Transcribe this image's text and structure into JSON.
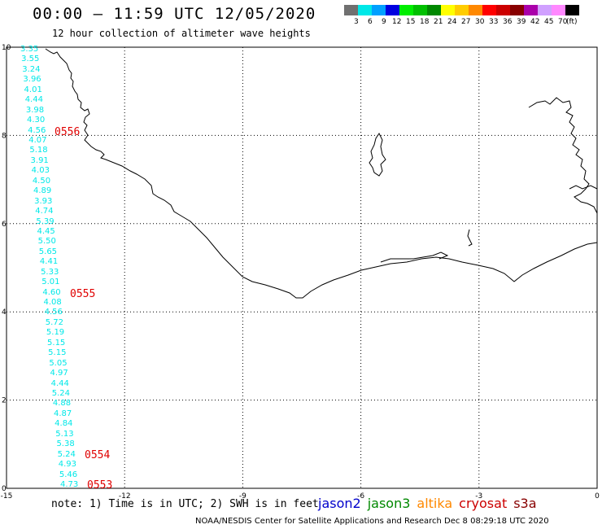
{
  "header": {
    "title": "00:00 – 11:59 UTC 12/05/2020",
    "subtitle": "12 hour collection of altimeter wave heights"
  },
  "legend": {
    "unit": "(ft)",
    "swatches": [
      {
        "label": "3",
        "color": "#707070"
      },
      {
        "label": "6",
        "color": "#00e8e8"
      },
      {
        "label": "9",
        "color": "#00a0ff"
      },
      {
        "label": "12",
        "color": "#0000e0"
      },
      {
        "label": "15",
        "color": "#00ee00"
      },
      {
        "label": "18",
        "color": "#00c000"
      },
      {
        "label": "21",
        "color": "#008800"
      },
      {
        "label": "24",
        "color": "#ffff00"
      },
      {
        "label": "27",
        "color": "#ffcc00"
      },
      {
        "label": "30",
        "color": "#ff8800"
      },
      {
        "label": "33",
        "color": "#ff0000"
      },
      {
        "label": "36",
        "color": "#cc0000"
      },
      {
        "label": "39",
        "color": "#880000"
      },
      {
        "label": "42",
        "color": "#aa00aa"
      },
      {
        "label": "45",
        "color": "#d0a0ff"
      },
      {
        "label": "70",
        "color": "#ff88ff"
      },
      {
        "label": "",
        "color": "#000000"
      }
    ]
  },
  "axes": {
    "x_ticks": [
      "-15",
      "-12",
      "-9",
      "-6",
      "-3",
      "0"
    ],
    "y_ticks": [
      "0",
      "2",
      "4",
      "6",
      "8",
      "10"
    ],
    "x_range": [
      -15,
      0
    ],
    "y_range": [
      0,
      10
    ]
  },
  "track": {
    "color": "#00e8e8",
    "values": [
      "3.35",
      "3.55",
      "3.24",
      "3.96",
      "4.01",
      "4.44",
      "3.98",
      "4.30",
      "4.56",
      "4.07",
      "5.18",
      "3.91",
      "4.03",
      "4.50",
      "4.89",
      "3.93",
      "4.74",
      "5.39",
      "4.45",
      "5.50",
      "5.65",
      "4.41",
      "5.33",
      "5.01",
      "4.60",
      "4.08",
      "4.56",
      "5.72",
      "5.19",
      "5.15",
      "5.15",
      "5.05",
      "4.97",
      "4.44",
      "5.24",
      "4.88",
      "4.87",
      "4.84",
      "5.13",
      "5.38",
      "5.24",
      "4.93",
      "5.46",
      "4.73"
    ]
  },
  "time_labels": {
    "color": "#e00000",
    "items": [
      "0556",
      "0555",
      "0554",
      "0553"
    ]
  },
  "footer": {
    "note": "note:  1) Time is in UTC;  2) SWH is in feet",
    "credit": "NOAA/NESDIS Center for Satellite Applications and Research    Dec  8 08:29:18 UTC 2020",
    "satellites": [
      {
        "name": "jason2",
        "color": "#0000cc"
      },
      {
        "name": "jason3",
        "color": "#008800"
      },
      {
        "name": "altika",
        "color": "#ff8800"
      },
      {
        "name": "cryosat",
        "color": "#cc0000"
      },
      {
        "name": "s3a",
        "color": "#880000"
      }
    ]
  }
}
